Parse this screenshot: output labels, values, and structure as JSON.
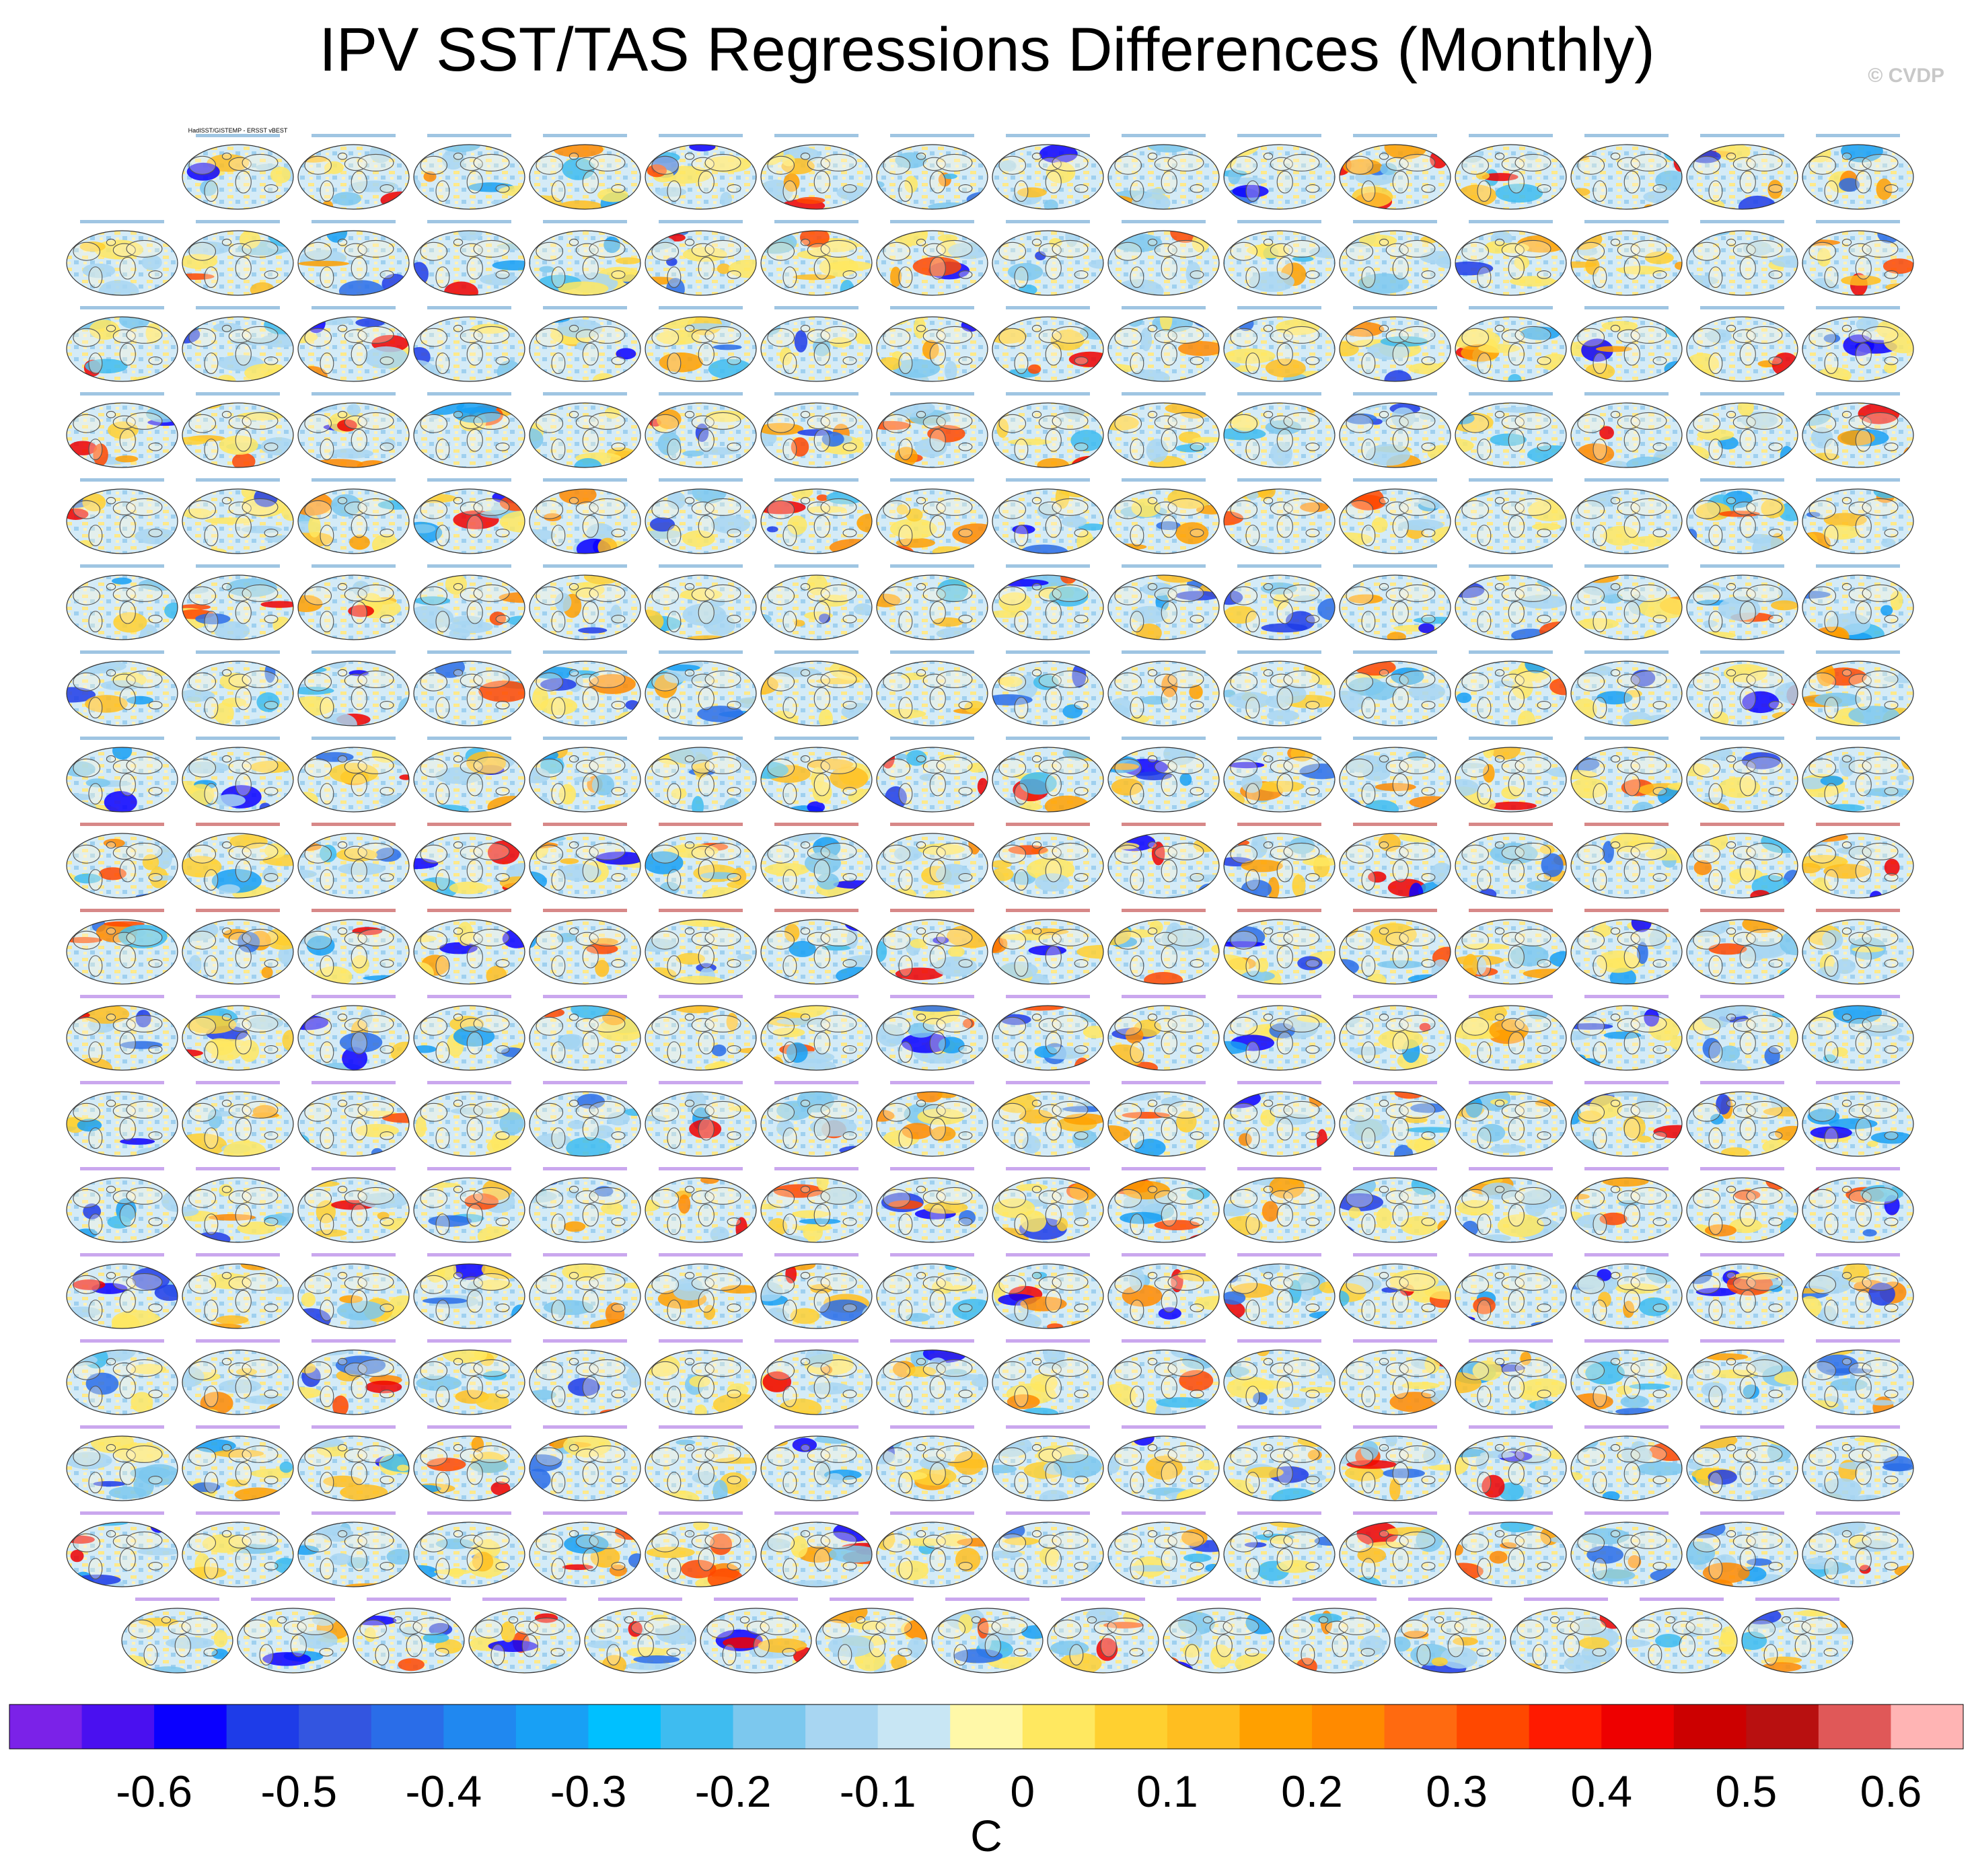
{
  "title": "IPV SST/TAS Regressions Differences (Monthly)",
  "watermark": "© CVDP",
  "chart_data": {
    "type": "heatmap",
    "title": "IPV SST/TAS Regressions Differences (Monthly)",
    "description_units": "C",
    "panel_grid": {
      "rows": [
        15,
        16,
        16,
        16,
        16,
        16,
        16,
        16,
        16,
        16,
        16,
        16,
        16,
        16,
        16,
        16,
        16,
        15
      ],
      "first_panel_label": "HadISST/GISTEMP - ERSST vBEST"
    },
    "colorbar": {
      "label": "C",
      "tick_labels": [
        "-0.6",
        "-0.5",
        "-0.4",
        "-0.3",
        "-0.2",
        "-0.1",
        "0",
        "0.1",
        "0.2",
        "0.3",
        "0.4",
        "0.5",
        "0.6"
      ],
      "colors": [
        "#7b22e8",
        "#4a10f0",
        "#0a00ff",
        "#1e3ce8",
        "#3355e0",
        "#2a6de8",
        "#2088f0",
        "#18a0f5",
        "#00c0ff",
        "#3ebcf0",
        "#7cc8ee",
        "#a8d6f2",
        "#c8e6f4",
        "#fff8a8",
        "#ffe860",
        "#ffd030",
        "#ffbe20",
        "#ffa000",
        "#ff8a00",
        "#ff6a10",
        "#ff4800",
        "#ff1a00",
        "#ee0000",
        "#cc0000",
        "#b81010",
        "#e05858",
        "#ffb4b4"
      ]
    }
  }
}
